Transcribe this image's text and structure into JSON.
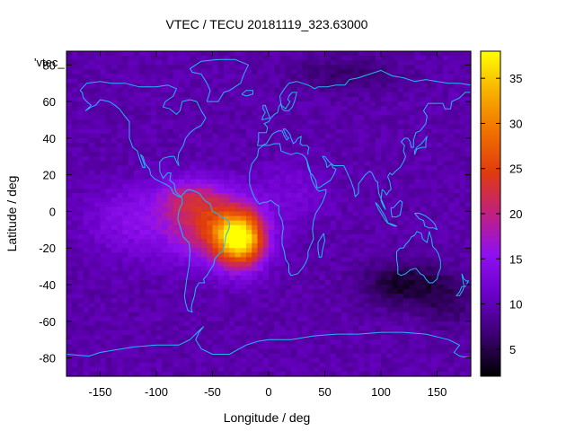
{
  "chart_data": {
    "type": "heatmap",
    "title": "VTEC / TECU 20181119_323.63000",
    "series_label": "'vtec_",
    "xlabel": "Longitude / deg",
    "ylabel": "Latitude / deg",
    "xlim": [
      -180,
      180
    ],
    "ylim": [
      -90,
      87.5
    ],
    "xticks": [
      -150,
      -100,
      -50,
      0,
      50,
      100,
      150
    ],
    "xtick_labels": [
      "-150",
      "-100",
      "-50",
      "0",
      "50",
      "100",
      "150"
    ],
    "yticks": [
      -80,
      -60,
      -40,
      -20,
      0,
      20,
      40,
      60,
      80
    ],
    "ytick_labels": [
      "-80",
      "-60",
      "-40",
      "-20",
      "0",
      "20",
      "40",
      "60",
      "80"
    ],
    "colorbar": {
      "range": [
        2,
        38
      ],
      "ticks": [
        5,
        10,
        15,
        20,
        25,
        30,
        35
      ],
      "tick_labels": [
        "5",
        "10",
        "15",
        "20",
        "25",
        "30",
        "35"
      ],
      "palette": [
        "#000000",
        "#3a0070",
        "#6a00c8",
        "#8f10f0",
        "#c02080",
        "#e03a10",
        "#f07000",
        "#f8b000",
        "#ffff00"
      ]
    },
    "grid_resolution": {
      "dlon": 5,
      "dlat": 2.5
    },
    "peak": {
      "lon": -25,
      "lat": -15,
      "value": 37
    },
    "features": [
      {
        "name": "equatorial crest",
        "lon": -60,
        "lat": 5,
        "value": 25
      },
      {
        "name": "southern crest",
        "lon": -20,
        "lat": -15,
        "value": 36
      },
      {
        "name": "night-side minimum",
        "lon": 120,
        "lat": -40,
        "value": 3
      },
      {
        "name": "background",
        "value": 10
      }
    ],
    "overlay": "coastlines"
  }
}
